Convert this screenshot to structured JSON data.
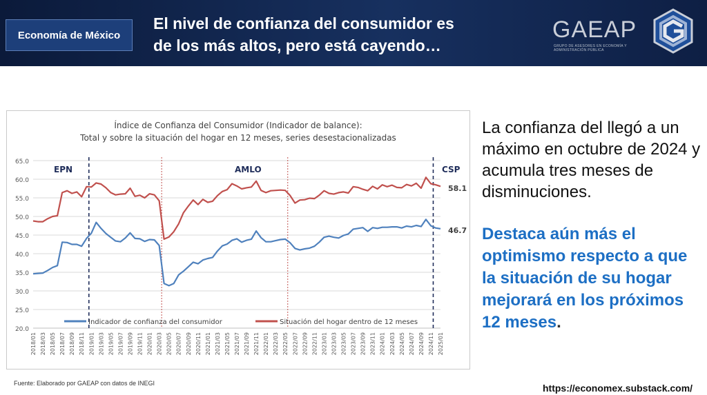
{
  "header": {
    "section_label": "Economía de México",
    "title_line1": "El nivel de confianza del consumidor es",
    "title_line2": "de los más altos, pero está cayendo…",
    "logo_text": "GAEAP",
    "logo_subtitle": "GRUPO DE ASESORES EN ECONOMÍA Y ADMINISTRACIÓN PÚBLICA"
  },
  "body_text": {
    "paragraph": "La confianza del llegó a un máximo en octubre de 2024 y acumula tres meses de disminuciones.",
    "highlight_main": "Destaca aún más el optimismo respecto a que la  situación de su hogar mejorará en los próximos 12 meses",
    "highlight_end": "."
  },
  "footer": {
    "source": "Fuente: Elaborado por GAEAP con datos de INEGI",
    "url": "https://economex.substack.com/"
  },
  "colors": {
    "blue_series": "#4f81bd",
    "red_series": "#c0504d",
    "banner": "#0b1a3a",
    "highlight": "#1d6fc4"
  },
  "chart_data": {
    "type": "line",
    "title_line1": "Índice de Confianza del Consumidor (Indicador de balance):",
    "title_line2": "Total y sobre la situación del hogar en 12 meses, series desestacionalizadas",
    "ylim": [
      20,
      65
    ],
    "yticks": [
      "20.0",
      "25.0",
      "30.0",
      "35.0",
      "40.0",
      "45.0",
      "50.0",
      "55.0",
      "60.0",
      "65.0"
    ],
    "xticks": [
      "2018/01",
      "2018/03",
      "2018/05",
      "2018/07",
      "2018/09",
      "2018/11",
      "2019/01",
      "2019/03",
      "2019/05",
      "2019/07",
      "2019/09",
      "2019/11",
      "2020/01",
      "2020/03",
      "2020/05",
      "2020/07",
      "2020/09",
      "2020/11",
      "2021/01",
      "2021/03",
      "2021/05",
      "2021/07",
      "2021/09",
      "2021/11",
      "2022/01",
      "2022/03",
      "2022/05",
      "2022/07",
      "2022/09",
      "2022/11",
      "2023/01",
      "2023/03",
      "2023/05",
      "2023/07",
      "2023/09",
      "2023/11",
      "2024/01",
      "2024/03",
      "2024/05",
      "2024/07",
      "2024/09",
      "2024/11",
      "2025/01"
    ],
    "period_labels": [
      "EPN",
      "AMLO",
      "CSP"
    ],
    "period_dividers_month_index": [
      11.5,
      26.5,
      52.5,
      82.5
    ],
    "series": [
      {
        "name": "Indicador de confianza del consumidor",
        "last_label": "46.7",
        "values": [
          34.6,
          34.7,
          34.8,
          35.5,
          36.3,
          36.8,
          43.1,
          43.0,
          42.5,
          42.5,
          42.0,
          44.1,
          45.5,
          48.4,
          46.8,
          45.4,
          44.4,
          43.4,
          43.2,
          44.2,
          45.6,
          44.1,
          44.0,
          43.3,
          43.8,
          43.7,
          42.2,
          32.0,
          31.4,
          32.0,
          34.3,
          35.3,
          36.5,
          37.7,
          37.3,
          38.3,
          38.7,
          39.0,
          40.7,
          42.1,
          42.6,
          43.6,
          44.0,
          43.1,
          43.6,
          43.9,
          46.1,
          44.3,
          43.2,
          43.2,
          43.5,
          43.8,
          43.9,
          42.9,
          41.4,
          41.0,
          41.3,
          41.5,
          42.0,
          43.1,
          44.4,
          44.7,
          44.4,
          44.2,
          44.9,
          45.3,
          46.6,
          46.8,
          47.0,
          46.0,
          47.0,
          46.8,
          47.1,
          47.1,
          47.2,
          47.2,
          46.9,
          47.4,
          47.2,
          47.6,
          47.3,
          49.2,
          47.5,
          46.9,
          46.7
        ]
      },
      {
        "name": "Situación del hogar dentro de 12 meses",
        "last_label": "58.1",
        "values": [
          48.8,
          48.6,
          48.6,
          49.4,
          50.0,
          50.2,
          56.4,
          56.9,
          56.2,
          56.6,
          55.3,
          58.0,
          57.9,
          59.0,
          58.7,
          57.7,
          56.4,
          55.8,
          56.0,
          56.1,
          57.6,
          55.4,
          55.7,
          55.0,
          56.1,
          55.8,
          54.2,
          43.9,
          44.5,
          45.9,
          48.0,
          51.0,
          52.8,
          54.4,
          53.2,
          54.6,
          53.8,
          54.1,
          55.6,
          56.7,
          57.2,
          58.8,
          58.2,
          57.4,
          57.7,
          57.9,
          59.5,
          57.0,
          56.4,
          56.9,
          57.0,
          57.1,
          57.0,
          55.6,
          53.6,
          54.4,
          54.5,
          54.9,
          54.8,
          55.7,
          56.9,
          56.2,
          56.0,
          56.4,
          56.6,
          56.3,
          58.0,
          57.8,
          57.3,
          56.9,
          58.1,
          57.4,
          58.5,
          58.0,
          58.4,
          57.8,
          57.7,
          58.6,
          58.2,
          58.9,
          57.6,
          60.5,
          58.8,
          58.5,
          58.1
        ]
      }
    ]
  }
}
